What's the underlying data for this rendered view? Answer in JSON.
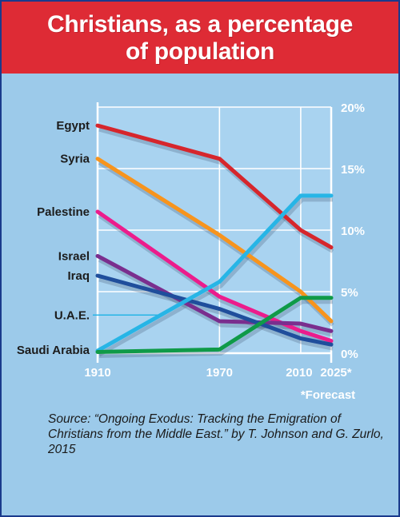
{
  "header": {
    "title": "Christians, as a percentage\nof population"
  },
  "colors": {
    "header_bg": "#de2b35",
    "panel_bg": "#9ccaea",
    "plot_bg": "#a9d3f0",
    "border": "#1a3a8c"
  },
  "chart_data": {
    "type": "line",
    "title": "Christians, as a percentage of population",
    "x": [
      1910,
      1970,
      2010,
      2025
    ],
    "x_tick_labels": [
      "1910",
      "1970",
      "2010",
      "2025*"
    ],
    "ylim": [
      0,
      20
    ],
    "y_ticks": [
      0,
      5,
      10,
      15,
      20
    ],
    "y_tick_labels": [
      "0%",
      "5%",
      "10%",
      "15%",
      "20%"
    ],
    "y_axis_side": "right",
    "grid": true,
    "forecast_note": "*Forecast",
    "series": [
      {
        "name": "Egypt",
        "color": "#d6262c",
        "values": [
          18.5,
          15.8,
          10,
          8.6
        ]
      },
      {
        "name": "Syria",
        "color": "#f7941d",
        "values": [
          15.8,
          9.6,
          5.0,
          2.6
        ]
      },
      {
        "name": "Palestine",
        "color": "#ec1c8c",
        "values": [
          11.5,
          4.6,
          1.8,
          1.0
        ]
      },
      {
        "name": "Israel",
        "color": "#7a2e8e",
        "values": [
          7.9,
          2.6,
          2.4,
          1.8
        ]
      },
      {
        "name": "Iraq",
        "color": "#1f4e9c",
        "values": [
          6.3,
          3.6,
          1.2,
          0.7
        ]
      },
      {
        "name": "U.A.E.",
        "color": "#27b5e6",
        "values": [
          0.2,
          5.8,
          12.8,
          12.8
        ]
      },
      {
        "name": "Saudi Arabia",
        "color": "#0f9a48",
        "values": [
          0.1,
          0.3,
          4.5,
          4.5
        ]
      }
    ]
  },
  "source": "Source: “Ongoing Exodus: Tracking the Emigration of Christians from the Middle East.” by T. Johnson and G. Zurlo, 2015"
}
